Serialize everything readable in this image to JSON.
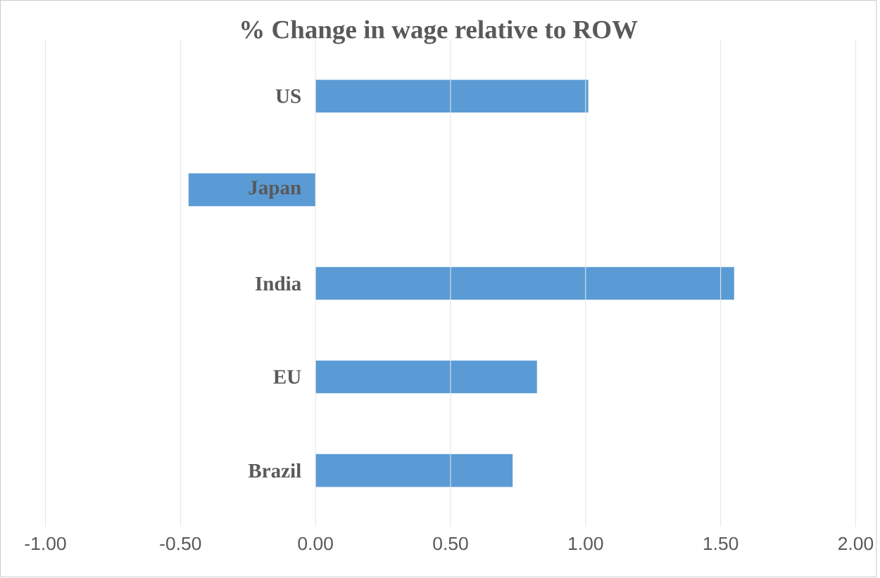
{
  "chart_data": {
    "type": "bar",
    "orientation": "horizontal",
    "title": "% Change in wage relative to ROW",
    "categories": [
      "US",
      "Japan",
      "India",
      "EU",
      "Brazil"
    ],
    "values": [
      1.01,
      -0.47,
      1.55,
      0.82,
      0.73
    ],
    "color": "#5b9bd5",
    "xlim": [
      -1.0,
      2.0
    ],
    "xticks": [
      {
        "value": -1.0,
        "label": "-1.00"
      },
      {
        "value": -0.5,
        "label": "-0.50"
      },
      {
        "value": 0.0,
        "label": "0.00"
      },
      {
        "value": 0.5,
        "label": "0.50"
      },
      {
        "value": 1.0,
        "label": "1.00"
      },
      {
        "value": 1.5,
        "label": "1.50"
      },
      {
        "value": 2.0,
        "label": "2.00"
      }
    ],
    "grid": "x"
  }
}
